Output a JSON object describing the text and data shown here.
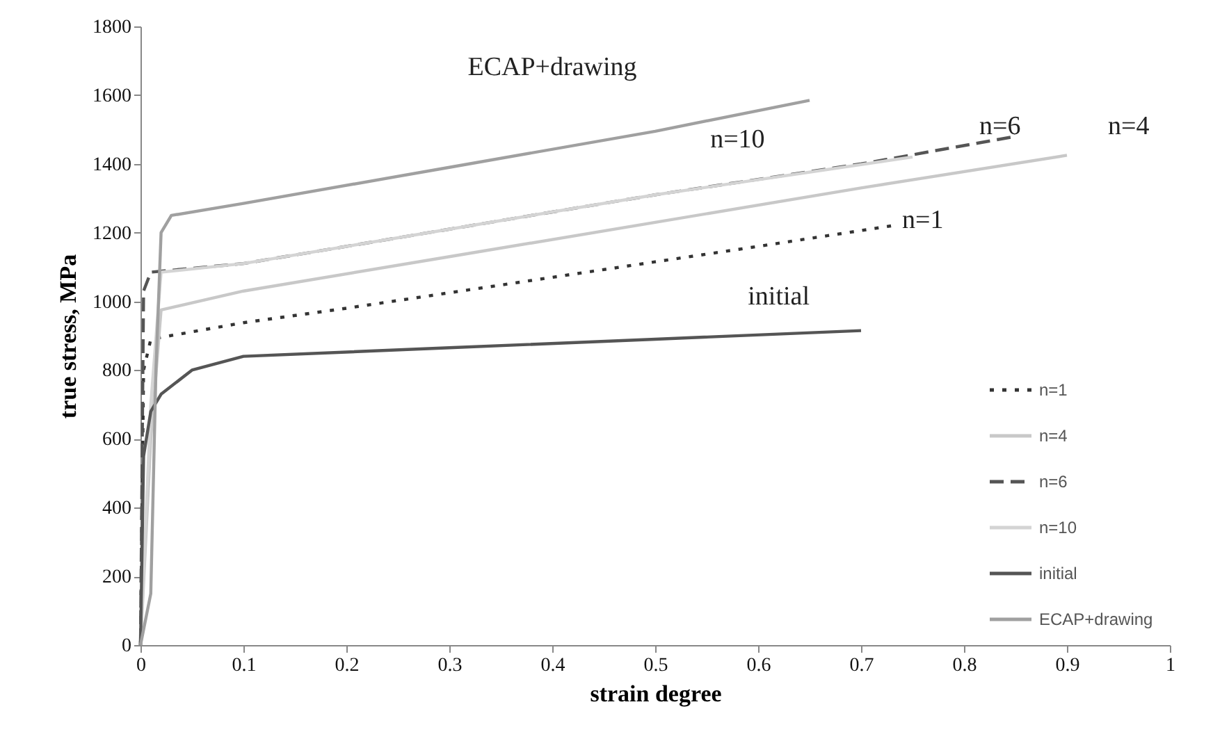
{
  "chart_data": {
    "type": "line",
    "xlabel": "strain degree",
    "ylabel": "true stress, MPa",
    "xlim": [
      0,
      1
    ],
    "xticks": [
      0,
      0.1,
      0.2,
      0.3,
      0.4,
      0.5,
      0.6,
      0.7,
      0.8,
      0.9,
      1
    ],
    "ylim": [
      0,
      1800
    ],
    "yticks": [
      0,
      200,
      400,
      600,
      800,
      1000,
      1200,
      1400,
      1600,
      1800
    ],
    "grid": false,
    "legend": "bottom right",
    "marker": "none",
    "series": [
      {
        "name": "n=1",
        "color": "#333333",
        "line_style": "dotted",
        "x": [
          0,
          0.003,
          0.01,
          0.1,
          0.2,
          0.3,
          0.4,
          0.5,
          0.6,
          0.73
        ],
        "values": [
          0,
          800,
          890,
          938,
          980,
          1025,
          1070,
          1115,
          1160,
          1220
        ]
      },
      {
        "name": "n=4",
        "color": "#c8c8c8",
        "line_style": "solid",
        "x": [
          0,
          0.01,
          0.02,
          0.1,
          0.3,
          0.5,
          0.7,
          0.9
        ],
        "values": [
          0,
          600,
          975,
          1030,
          1130,
          1230,
          1330,
          1425
        ]
      },
      {
        "name": "n=6",
        "color": "#555555",
        "line_style": "dashed",
        "x": [
          0,
          0.003,
          0.01,
          0.1,
          0.3,
          0.5,
          0.7,
          0.85
        ],
        "values": [
          0,
          1030,
          1085,
          1110,
          1210,
          1310,
          1400,
          1480
        ]
      },
      {
        "name": "n=10",
        "color": "#d4d4d4",
        "line_style": "solid",
        "x": [
          0,
          0.01,
          0.02,
          0.1,
          0.3,
          0.5,
          0.75
        ],
        "values": [
          0,
          700,
          1085,
          1110,
          1210,
          1310,
          1420
        ]
      },
      {
        "name": "initial",
        "color": "#555555",
        "line_style": "solid",
        "x": [
          0,
          0.003,
          0.01,
          0.02,
          0.05,
          0.1,
          0.3,
          0.5,
          0.7
        ],
        "values": [
          0,
          550,
          680,
          730,
          800,
          840,
          865,
          890,
          915
        ]
      },
      {
        "name": "ECAP+drawing",
        "color": "#a0a0a0",
        "line_style": "solid",
        "x": [
          0,
          0.01,
          0.015,
          0.02,
          0.03,
          0.1,
          0.3,
          0.5,
          0.65
        ],
        "values": [
          0,
          150,
          800,
          1200,
          1250,
          1285,
          1390,
          1495,
          1585
        ]
      }
    ],
    "annotations": [
      "ECAP+drawing",
      "n=10",
      "n=6",
      "n=4",
      "n=1",
      "initial"
    ]
  }
}
